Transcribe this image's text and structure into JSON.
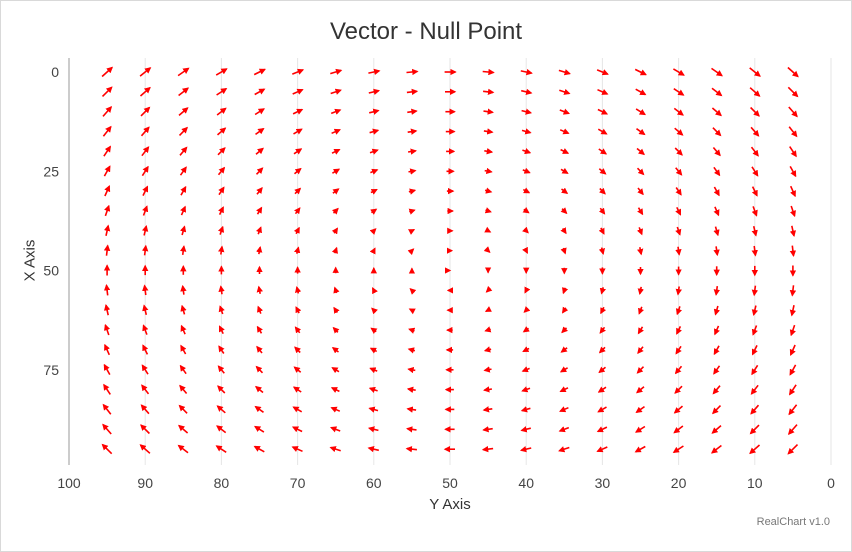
{
  "chart_data": {
    "type": "vector",
    "title": "Vector - Null Point",
    "xlabel": "Y Axis",
    "ylabel": "X Axis",
    "credit": "RealChart v1.0",
    "x_reversed": true,
    "y_reversed": true,
    "xlim": [
      0,
      100
    ],
    "ylim": [
      0,
      100
    ],
    "x_ticks": [
      100,
      90,
      80,
      70,
      60,
      50,
      40,
      30,
      20,
      10,
      0
    ],
    "y_ticks": [
      0,
      25,
      50,
      75
    ],
    "grid": {
      "vertical": true,
      "horizontal": false
    },
    "arrow_color": "#ff0000",
    "grid_x": [
      95,
      90,
      85,
      80,
      75,
      70,
      65,
      60,
      55,
      50,
      45,
      40,
      35,
      30,
      25,
      20,
      15,
      10,
      5
    ],
    "grid_y": [
      0,
      5,
      10,
      15,
      20,
      25,
      30,
      35,
      40,
      45,
      50,
      55,
      60,
      65,
      70,
      75,
      80,
      85,
      90,
      95
    ],
    "null_point": {
      "x": 50,
      "y": 50
    },
    "field_note": "arrow direction = (y - 50, 50 - x); length grows with distance from null point"
  }
}
